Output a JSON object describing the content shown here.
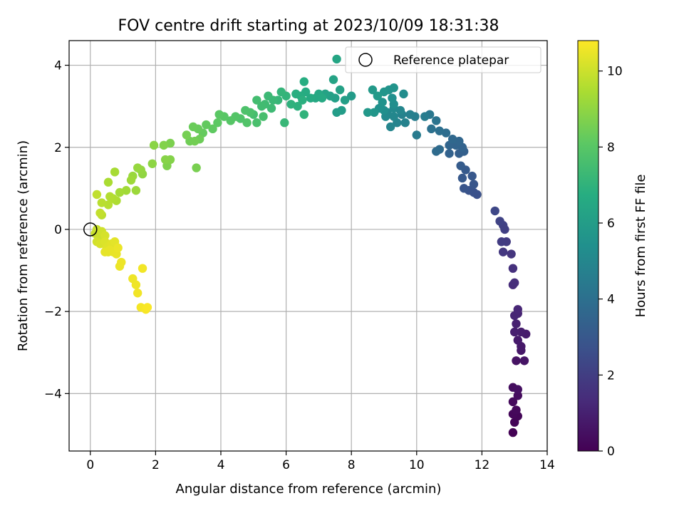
{
  "chart_data": {
    "type": "scatter",
    "title": "FOV centre drift starting at 2023/10/09 18:31:38",
    "xlabel": "Angular distance from reference (arcmin)",
    "ylabel": "Rotation from reference (arcmin)",
    "xlim": [
      -0.65,
      14.0
    ],
    "ylim": [
      -5.4,
      4.6
    ],
    "xticks": [
      0,
      2,
      4,
      6,
      8,
      10,
      12,
      14
    ],
    "yticks": [
      -4,
      -2,
      0,
      2,
      4
    ],
    "grid": true,
    "legend": {
      "position": "top-right",
      "entries": [
        "Reference platepar"
      ]
    },
    "reference_point": {
      "x": 0,
      "y": 0
    },
    "colorbar": {
      "label": "Hours from first FF file",
      "colormap": "viridis",
      "min": 0,
      "max": 10.8,
      "ticks": [
        0,
        2,
        4,
        6,
        8,
        10
      ]
    },
    "points": [
      [
        12.95,
        -4.95,
        0.05
      ],
      [
        13.0,
        -4.7,
        0.1
      ],
      [
        13.1,
        -4.55,
        0.15
      ],
      [
        12.95,
        -4.5,
        0.2
      ],
      [
        13.05,
        -4.4,
        0.25
      ],
      [
        12.95,
        -4.2,
        0.3
      ],
      [
        13.1,
        -4.05,
        0.35
      ],
      [
        12.95,
        -3.85,
        0.4
      ],
      [
        13.1,
        -3.9,
        0.45
      ],
      [
        13.05,
        -3.2,
        0.55
      ],
      [
        13.3,
        -3.2,
        0.6
      ],
      [
        13.2,
        -2.95,
        0.7
      ],
      [
        13.2,
        -2.85,
        0.75
      ],
      [
        13.1,
        -2.7,
        0.8
      ],
      [
        13.35,
        -2.55,
        0.85
      ],
      [
        13.2,
        -2.5,
        0.9
      ],
      [
        13.0,
        -2.5,
        0.95
      ],
      [
        13.05,
        -2.3,
        1.0
      ],
      [
        13.1,
        -2.05,
        1.1
      ],
      [
        13.0,
        -2.1,
        1.15
      ],
      [
        13.1,
        -1.95,
        1.2
      ],
      [
        12.95,
        -1.35,
        1.4
      ],
      [
        13.0,
        -1.3,
        1.45
      ],
      [
        12.95,
        -0.95,
        1.55
      ],
      [
        12.9,
        -0.6,
        1.7
      ],
      [
        12.65,
        -0.55,
        1.8
      ],
      [
        12.75,
        -0.3,
        1.9
      ],
      [
        12.6,
        -0.3,
        1.95
      ],
      [
        12.7,
        0.0,
        2.05
      ],
      [
        12.65,
        0.1,
        2.1
      ],
      [
        12.55,
        0.2,
        2.2
      ],
      [
        12.4,
        0.45,
        2.35
      ],
      [
        11.85,
        0.85,
        2.7
      ],
      [
        11.75,
        0.9,
        2.75
      ],
      [
        11.6,
        0.95,
        2.8
      ],
      [
        11.45,
        1.0,
        2.85
      ],
      [
        11.75,
        1.1,
        2.9
      ],
      [
        11.7,
        1.3,
        3.0
      ],
      [
        11.4,
        1.25,
        3.05
      ],
      [
        11.5,
        1.45,
        3.1
      ],
      [
        11.35,
        1.55,
        3.15
      ],
      [
        11.3,
        1.85,
        3.3
      ],
      [
        11.45,
        1.9,
        3.35
      ],
      [
        11.0,
        1.85,
        3.4
      ],
      [
        11.4,
        2.0,
        3.45
      ],
      [
        11.2,
        2.05,
        3.5
      ],
      [
        11.0,
        2.05,
        3.55
      ],
      [
        11.3,
        2.15,
        3.6
      ],
      [
        11.1,
        2.2,
        3.65
      ],
      [
        10.7,
        1.95,
        3.75
      ],
      [
        10.6,
        1.9,
        3.8
      ],
      [
        10.9,
        2.35,
        3.9
      ],
      [
        10.7,
        2.4,
        3.95
      ],
      [
        10.45,
        2.45,
        4.05
      ],
      [
        10.6,
        2.65,
        4.15
      ],
      [
        10.4,
        2.8,
        4.3
      ],
      [
        10.0,
        2.3,
        4.5
      ],
      [
        10.25,
        2.75,
        4.55
      ],
      [
        9.95,
        2.75,
        4.6
      ],
      [
        9.8,
        2.8,
        4.7
      ],
      [
        9.55,
        2.8,
        4.75
      ],
      [
        9.65,
        2.6,
        4.8
      ],
      [
        9.4,
        2.6,
        4.85
      ],
      [
        9.2,
        2.5,
        4.9
      ],
      [
        9.5,
        2.9,
        4.95
      ],
      [
        9.3,
        2.75,
        5.0
      ],
      [
        9.1,
        2.85,
        5.05
      ],
      [
        9.3,
        2.95,
        5.1
      ],
      [
        9.05,
        2.75,
        5.15
      ],
      [
        9.6,
        3.3,
        5.25
      ],
      [
        9.3,
        3.05,
        5.3
      ],
      [
        9.0,
        2.9,
        5.35
      ],
      [
        9.25,
        3.2,
        5.4
      ],
      [
        8.85,
        2.95,
        5.45
      ],
      [
        8.95,
        3.1,
        5.5
      ],
      [
        9.15,
        3.4,
        5.55
      ],
      [
        9.3,
        3.45,
        5.6
      ],
      [
        9.0,
        3.35,
        5.65
      ],
      [
        8.7,
        2.85,
        5.7
      ],
      [
        8.5,
        2.85,
        5.75
      ],
      [
        8.65,
        3.4,
        5.8
      ],
      [
        8.8,
        3.25,
        5.85
      ],
      [
        8.0,
        3.25,
        5.9
      ],
      [
        7.7,
        2.9,
        5.95
      ],
      [
        7.55,
        2.85,
        6.0
      ],
      [
        7.8,
        3.15,
        6.05
      ],
      [
        7.5,
        3.2,
        6.1
      ],
      [
        7.35,
        3.25,
        6.15
      ],
      [
        7.65,
        3.4,
        6.2
      ],
      [
        7.2,
        3.3,
        6.25
      ],
      [
        7.45,
        3.65,
        6.3
      ],
      [
        7.55,
        4.15,
        6.4
      ],
      [
        7.0,
        3.3,
        6.45
      ],
      [
        6.9,
        3.2,
        6.5
      ],
      [
        7.1,
        3.2,
        6.55
      ],
      [
        6.75,
        3.2,
        6.6
      ],
      [
        6.6,
        3.35,
        6.65
      ],
      [
        6.45,
        3.25,
        6.7
      ],
      [
        6.55,
        3.6,
        6.75
      ],
      [
        6.3,
        3.3,
        6.8
      ],
      [
        6.5,
        3.15,
        6.85
      ],
      [
        6.35,
        3.0,
        6.9
      ],
      [
        6.15,
        3.05,
        6.95
      ],
      [
        6.55,
        2.8,
        7.0
      ],
      [
        6.0,
        3.25,
        7.05
      ],
      [
        5.85,
        3.35,
        7.1
      ],
      [
        5.75,
        3.15,
        7.15
      ],
      [
        5.95,
        2.6,
        7.2
      ],
      [
        5.6,
        3.15,
        7.25
      ],
      [
        5.45,
        3.25,
        7.3
      ],
      [
        5.55,
        2.95,
        7.35
      ],
      [
        5.35,
        3.05,
        7.4
      ],
      [
        5.25,
        3.0,
        7.45
      ],
      [
        5.1,
        3.15,
        7.5
      ],
      [
        5.0,
        2.8,
        7.55
      ],
      [
        5.3,
        2.75,
        7.6
      ],
      [
        5.1,
        2.6,
        7.65
      ],
      [
        4.9,
        2.85,
        7.7
      ],
      [
        4.75,
        2.9,
        7.75
      ],
      [
        4.6,
        2.7,
        7.8
      ],
      [
        4.8,
        2.6,
        7.85
      ],
      [
        4.45,
        2.75,
        7.9
      ],
      [
        4.3,
        2.65,
        7.95
      ],
      [
        4.1,
        2.75,
        8.0
      ],
      [
        3.95,
        2.8,
        8.05
      ],
      [
        3.9,
        2.6,
        8.1
      ],
      [
        3.75,
        2.45,
        8.15
      ],
      [
        3.55,
        2.55,
        8.2
      ],
      [
        3.45,
        2.35,
        8.25
      ],
      [
        3.3,
        2.45,
        8.3
      ],
      [
        3.15,
        2.5,
        8.35
      ],
      [
        3.35,
        2.2,
        8.4
      ],
      [
        3.05,
        2.15,
        8.45
      ],
      [
        3.2,
        2.15,
        8.5
      ],
      [
        2.95,
        2.3,
        8.55
      ],
      [
        3.25,
        1.5,
        8.6
      ],
      [
        2.45,
        2.1,
        8.65
      ],
      [
        2.35,
        1.55,
        8.7
      ],
      [
        2.25,
        2.05,
        8.75
      ],
      [
        2.45,
        1.7,
        8.8
      ],
      [
        2.3,
        1.7,
        8.85
      ],
      [
        1.95,
        2.05,
        8.9
      ],
      [
        1.9,
        1.6,
        8.95
      ],
      [
        1.6,
        1.35,
        9.0
      ],
      [
        1.55,
        1.45,
        9.05
      ],
      [
        1.45,
        1.5,
        9.1
      ],
      [
        1.3,
        1.3,
        9.15
      ],
      [
        1.4,
        0.95,
        9.2
      ],
      [
        1.25,
        1.2,
        9.25
      ],
      [
        1.1,
        0.95,
        9.3
      ],
      [
        0.9,
        0.9,
        9.35
      ],
      [
        0.75,
        1.4,
        9.4
      ],
      [
        0.55,
        1.15,
        9.45
      ],
      [
        0.8,
        0.7,
        9.5
      ],
      [
        0.7,
        0.75,
        9.55
      ],
      [
        0.6,
        0.8,
        9.6
      ],
      [
        0.55,
        0.6,
        9.65
      ],
      [
        0.35,
        0.65,
        9.7
      ],
      [
        0.35,
        0.35,
        9.75
      ],
      [
        0.2,
        0.85,
        9.8
      ],
      [
        0.3,
        0.4,
        9.85
      ],
      [
        0.2,
        0.0,
        9.9
      ],
      [
        0.15,
        -0.1,
        9.95
      ],
      [
        0.25,
        -0.2,
        10.0
      ],
      [
        0.35,
        -0.05,
        10.05
      ],
      [
        0.2,
        -0.3,
        10.1
      ],
      [
        0.45,
        -0.15,
        10.15
      ],
      [
        0.3,
        -0.35,
        10.2
      ],
      [
        0.45,
        -0.3,
        10.25
      ],
      [
        0.5,
        -0.45,
        10.3
      ],
      [
        0.65,
        -0.35,
        10.35
      ],
      [
        0.75,
        -0.3,
        10.38
      ],
      [
        0.55,
        -0.55,
        10.4
      ],
      [
        0.45,
        -0.55,
        10.42
      ],
      [
        0.6,
        -0.5,
        10.44
      ],
      [
        0.7,
        -0.55,
        10.46
      ],
      [
        0.8,
        -0.6,
        10.48
      ],
      [
        0.85,
        -0.45,
        10.5
      ],
      [
        0.9,
        -0.9,
        10.52
      ],
      [
        0.95,
        -0.8,
        10.54
      ],
      [
        1.3,
        -1.2,
        10.56
      ],
      [
        1.4,
        -1.35,
        10.58
      ],
      [
        1.45,
        -1.55,
        10.6
      ],
      [
        1.6,
        -0.95,
        10.62
      ],
      [
        1.55,
        -1.9,
        10.66
      ],
      [
        1.7,
        -1.95,
        10.7
      ],
      [
        1.75,
        -1.9,
        10.74
      ]
    ]
  }
}
